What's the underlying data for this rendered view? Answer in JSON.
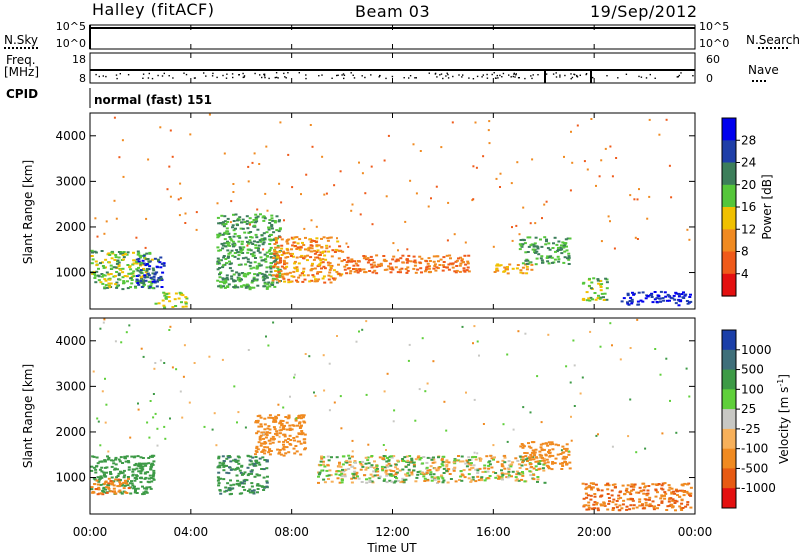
{
  "header": {
    "station": "Halley (fitACF)",
    "beam": "Beam 03",
    "date": "19/Sep/2012"
  },
  "left_labels": {
    "nsky": "N.Sky",
    "freq": "Freq.",
    "freq_unit": "[MHz]",
    "cpid": "CPID"
  },
  "right_labels": {
    "nsearch": "N.Search",
    "nave": "Nave"
  },
  "cpid_value": "normal (fast) 151",
  "nsky_ticks": [
    "10^5",
    "10^0"
  ],
  "nsearch_ticks": [
    "10^5",
    "10^0"
  ],
  "freq_ticks": [
    "18",
    "8"
  ],
  "nave_ticks": [
    "60",
    "0"
  ],
  "time_axis": {
    "label": "Time UT",
    "ticks": [
      "00:00",
      "04:00",
      "08:00",
      "12:00",
      "16:00",
      "20:00",
      "00:00"
    ]
  },
  "range_ticks": [
    "4000",
    "3000",
    "2000",
    "1000"
  ],
  "power_colorbar": {
    "label": "Power [dB]",
    "ticks": [
      "28",
      "24",
      "20",
      "16",
      "12",
      "8",
      "4"
    ],
    "colors": [
      "#0000ee",
      "#1f3fa8",
      "#3c7e5a",
      "#55c63a",
      "#f0c000",
      "#f08a20",
      "#ef5a1a",
      "#e41010"
    ]
  },
  "velocity_colorbar": {
    "label_main": "Velocity  [m s",
    "label_sup": "-1",
    "label_end": "]",
    "ticks": [
      "1000",
      "500",
      "100",
      "25",
      "-25",
      "-100",
      "-500",
      "-1000"
    ],
    "colors": [
      "#1b3fa8",
      "#3f6f7a",
      "#3d9a46",
      "#5fcf3a",
      "#c8c8c4",
      "#f7b05a",
      "#f08a20",
      "#e75a12",
      "#e41010"
    ]
  },
  "chart_data": [
    {
      "type": "heatmap",
      "title": "Power",
      "xlabel": "Time UT",
      "ylabel": "Slant Range [km]",
      "xlim_hours": [
        0,
        24
      ],
      "ylim_km": [
        200,
        4500
      ],
      "colorbar_label": "Power [dB]",
      "colorbar_range": [
        0,
        32
      ],
      "echo_regions": [
        {
          "t_start": 0.0,
          "t_end": 2.5,
          "r_min": 650,
          "r_max": 1500,
          "value_db": 18
        },
        {
          "t_start": 1.8,
          "t_end": 2.9,
          "r_min": 700,
          "r_max": 1400,
          "value_db": 26
        },
        {
          "t_start": 2.5,
          "t_end": 3.8,
          "r_min": 250,
          "r_max": 600,
          "value_db": 16
        },
        {
          "t_start": 5.0,
          "t_end": 7.5,
          "r_min": 650,
          "r_max": 2300,
          "value_db": 20
        },
        {
          "t_start": 7.2,
          "t_end": 10.0,
          "r_min": 800,
          "r_max": 1800,
          "value_db": 10
        },
        {
          "t_start": 10.0,
          "t_end": 15.0,
          "r_min": 1000,
          "r_max": 1400,
          "value_db": 8
        },
        {
          "t_start": 16.0,
          "t_end": 17.5,
          "r_min": 1000,
          "r_max": 1200,
          "value_db": 12
        },
        {
          "t_start": 17.0,
          "t_end": 19.0,
          "r_min": 1200,
          "r_max": 1800,
          "value_db": 20
        },
        {
          "t_start": 19.5,
          "t_end": 20.5,
          "r_min": 400,
          "r_max": 900,
          "value_db": 18
        },
        {
          "t_start": 21.0,
          "t_end": 23.8,
          "r_min": 300,
          "r_max": 600,
          "value_db": 28
        }
      ]
    },
    {
      "type": "heatmap",
      "title": "Velocity",
      "xlabel": "Time UT",
      "ylabel": "Slant Range [km]",
      "xlim_hours": [
        0,
        24
      ],
      "ylim_km": [
        200,
        4500
      ],
      "colorbar_label": "Velocity [m s-1]",
      "colorbar_range": [
        -1000,
        1000
      ],
      "echo_regions": [
        {
          "t_start": 0.0,
          "t_end": 2.5,
          "r_min": 650,
          "r_max": 1500,
          "value_ms": 300
        },
        {
          "t_start": 0.0,
          "t_end": 1.5,
          "r_min": 650,
          "r_max": 1000,
          "value_ms": -400
        },
        {
          "t_start": 5.0,
          "t_end": 7.0,
          "r_min": 650,
          "r_max": 1500,
          "value_ms": 400
        },
        {
          "t_start": 6.5,
          "t_end": 8.5,
          "r_min": 1500,
          "r_max": 2400,
          "value_ms": -300
        },
        {
          "t_start": 9.0,
          "t_end": 18.0,
          "r_min": 900,
          "r_max": 1500,
          "value_ms": 0
        },
        {
          "t_start": 17.0,
          "t_end": 19.0,
          "r_min": 1200,
          "r_max": 1800,
          "value_ms": -300
        },
        {
          "t_start": 19.5,
          "t_end": 23.8,
          "r_min": 300,
          "r_max": 900,
          "value_ms": -500
        }
      ]
    }
  ]
}
